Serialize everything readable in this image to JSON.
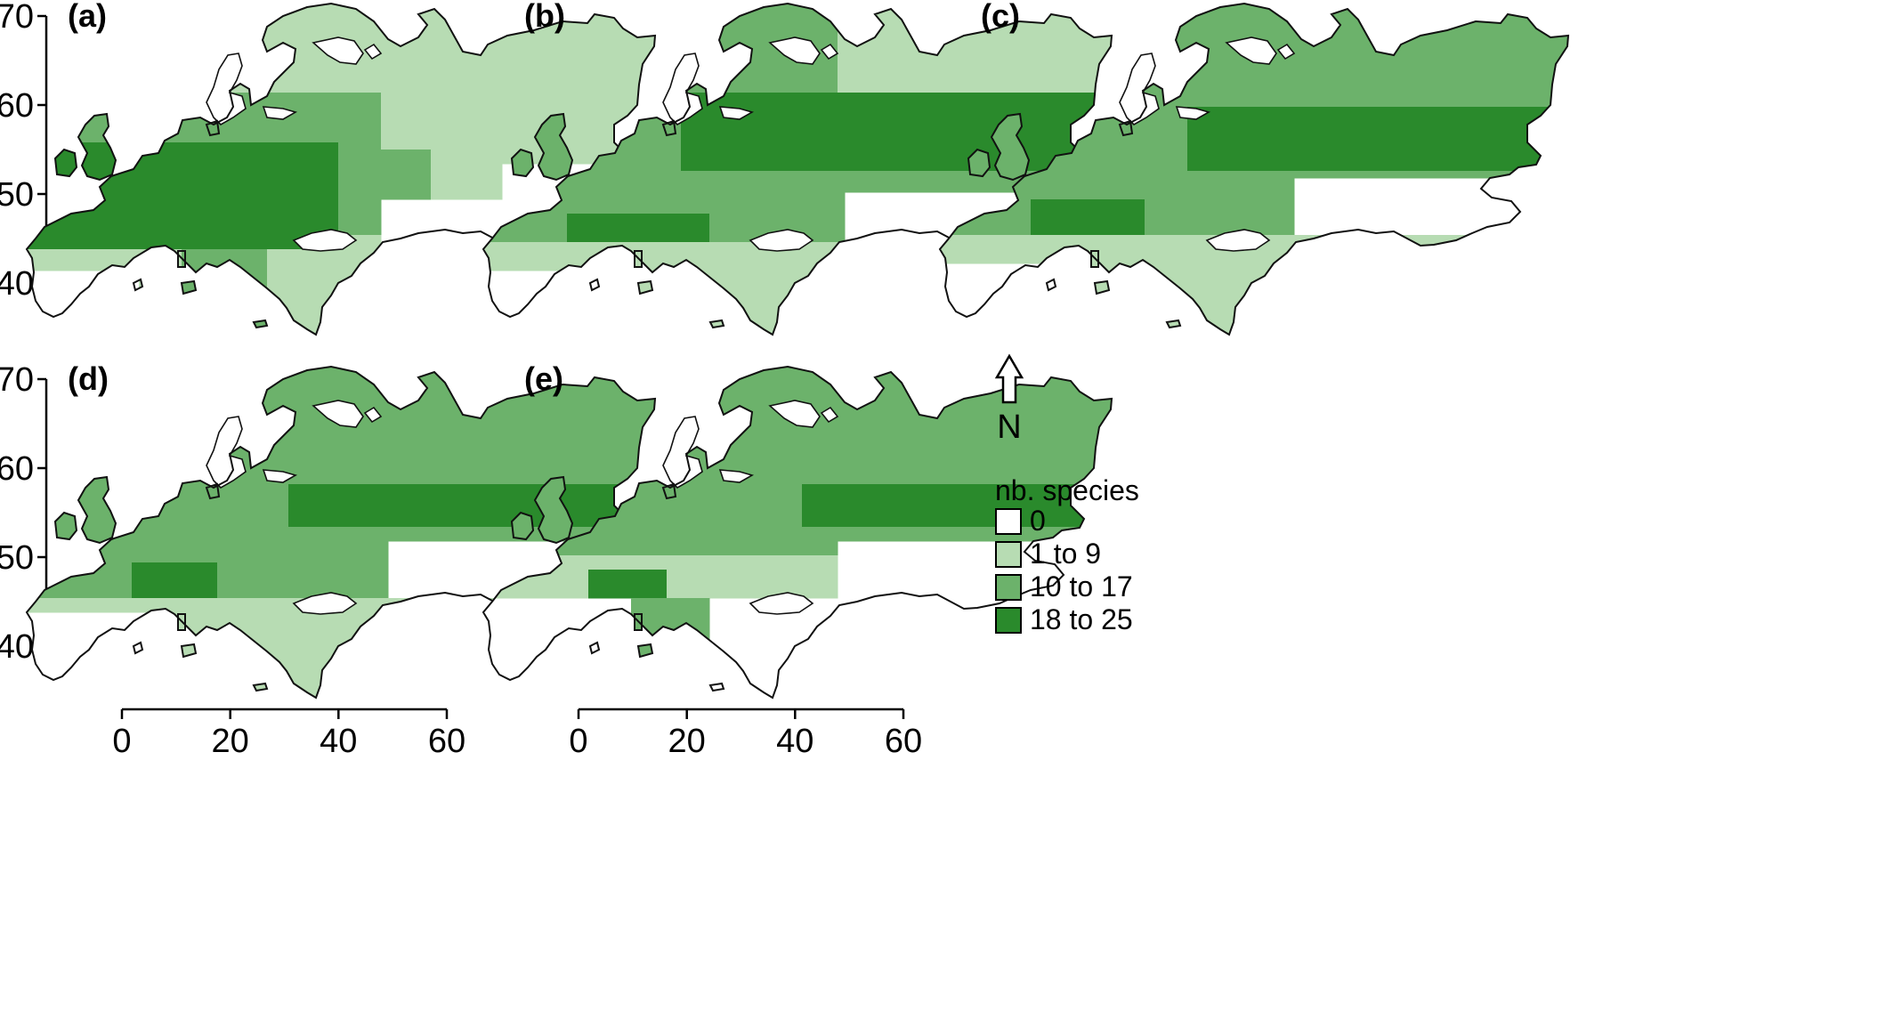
{
  "panels": [
    {
      "label": "(a)",
      "scenario": "a"
    },
    {
      "label": "(b)",
      "scenario": "b"
    },
    {
      "label": "(c)",
      "scenario": "c"
    },
    {
      "label": "(d)",
      "scenario": "d"
    },
    {
      "label": "(e)",
      "scenario": "e"
    }
  ],
  "y_axis": {
    "ticks": [
      "70",
      "60",
      "50",
      "40"
    ]
  },
  "x_axis": {
    "ticks": [
      "0",
      "20",
      "40",
      "60"
    ]
  },
  "north_arrow": {
    "label": "N"
  },
  "legend": {
    "title": "nb. species",
    "items": [
      {
        "label": "0",
        "color": "#ffffff"
      },
      {
        "label": "1 to 9",
        "color": "#b7dcb3"
      },
      {
        "label": "10 to 17",
        "color": "#6cb26b"
      },
      {
        "label": "18 to 25",
        "color": "#2a8a2c"
      }
    ]
  },
  "colors": {
    "outline": "#111111",
    "class0": "#ffffff",
    "class1": "#b7dcb3",
    "class2": "#6cb26b",
    "class3": "#2a8a2c"
  }
}
